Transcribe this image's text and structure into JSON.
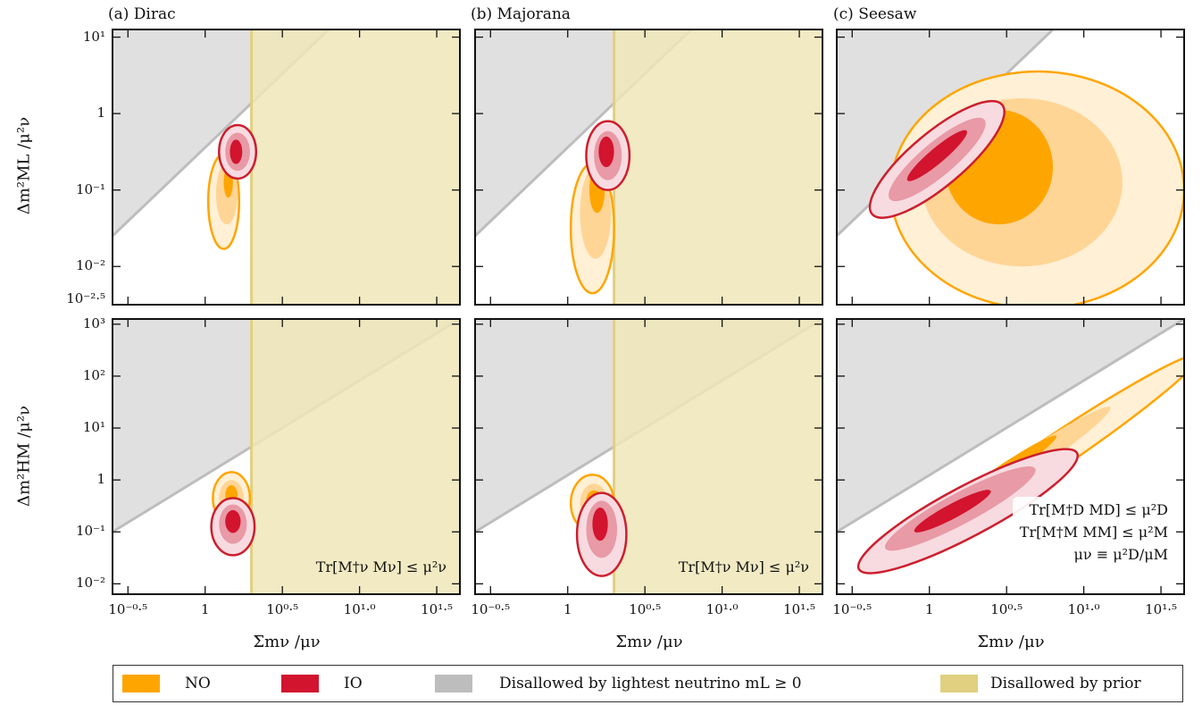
{
  "colors": {
    "no_core": "#ffa500",
    "no_mid": "#ffd596",
    "no_outer": "#fff0d6",
    "no_line": "#ffa500",
    "io_core": "#d2142e",
    "io_mid": "#e89aa6",
    "io_outer": "#f7dbe0",
    "io_line": "#cc1f2e",
    "lightest_disallowed": "#e0e0e0",
    "lightest_line": "#bdbdbd",
    "prior_disallowed": "#efe6b8",
    "prior_line": "#e0d080"
  },
  "panels": {
    "a": {
      "title": "(a)  Dirac"
    },
    "b": {
      "title": "(b)  Majorana"
    },
    "c": {
      "title": "(c)  Seesaw"
    }
  },
  "axes": {
    "top_ylabel": "Δm²ML /μ²ν",
    "bottom_ylabel": "Δm²HM /μ²ν",
    "xlabel": "Σmν /μν",
    "top_yticks": [
      {
        "value": 1,
        "label": "10¹"
      },
      {
        "value": 0,
        "label": "1"
      },
      {
        "value": -1,
        "label": "10⁻¹"
      },
      {
        "value": -2,
        "label": "10⁻²"
      },
      {
        "value": -2.5,
        "label": "10⁻²·⁵"
      }
    ],
    "bottom_yticks": [
      {
        "value": 3,
        "label": "10³"
      },
      {
        "value": 2,
        "label": "10²"
      },
      {
        "value": 1,
        "label": "10¹"
      },
      {
        "value": 0,
        "label": "1"
      },
      {
        "value": -1,
        "label": "10⁻¹"
      },
      {
        "value": -2,
        "label": "10⁻²"
      }
    ],
    "xticks": [
      {
        "value": -0.5,
        "label": "10⁻⁰·⁵"
      },
      {
        "value": 0,
        "label": "1"
      },
      {
        "value": 0.5,
        "label": "10⁰·⁵"
      },
      {
        "value": 1.0,
        "label": "10¹·⁰"
      },
      {
        "value": 1.5,
        "label": "10¹·⁵"
      }
    ]
  },
  "annotations": {
    "dirac": "Tr[M†ν Mν] ≤ μ²ν",
    "majorana": "Tr[M†ν Mν] ≤ μ²ν",
    "seesaw_line1": "Tr[M†D MD] ≤ μ²D",
    "seesaw_line2": "Tr[M†M MM] ≤ μ²M",
    "seesaw_line3": "μν ≡ μ²D/μM"
  },
  "legend": {
    "no": "NO",
    "io": "IO",
    "lightest": "Disallowed by lightest neutrino mL ≥ 0",
    "prior": "Disallowed by prior"
  },
  "chart_data": [
    {
      "type": "area",
      "panel": "a",
      "row": "top",
      "title": "(a)  Dirac",
      "xlabel": "Σmν /μν",
      "ylabel": "Δm²ML /μ²ν",
      "x_scale": "log10",
      "y_scale": "log10",
      "xlim_log10": [
        -0.6,
        1.65
      ],
      "ylim_log10": [
        -2.5,
        1.1
      ],
      "disallowed_lightest_boundary_log10": [
        [
          -0.6,
          -1.6
        ],
        [
          0.8,
          1.1
        ]
      ],
      "disallowed_prior_x_log10": 0.3,
      "series": [
        {
          "name": "NO",
          "levels": [
            {
              "cx": 0.12,
              "cy": -1.15,
              "rx": 0.1,
              "ry": 0.62
            },
            {
              "cx": 0.14,
              "cy": -1.05,
              "rx": 0.07,
              "ry": 0.4
            },
            {
              "cx": 0.15,
              "cy": -0.9,
              "rx": 0.03,
              "ry": 0.2
            }
          ]
        },
        {
          "name": "IO",
          "levels": [
            {
              "cx": 0.21,
              "cy": -0.5,
              "rx": 0.12,
              "ry": 0.35
            },
            {
              "cx": 0.21,
              "cy": -0.5,
              "rx": 0.08,
              "ry": 0.25
            },
            {
              "cx": 0.2,
              "cy": -0.5,
              "rx": 0.04,
              "ry": 0.16
            }
          ]
        }
      ]
    },
    {
      "type": "area",
      "panel": "b",
      "row": "top",
      "title": "(b)  Majorana",
      "xlabel": "Σmν /μν",
      "ylabel": "Δm²ML /μ²ν",
      "x_scale": "log10",
      "y_scale": "log10",
      "xlim_log10": [
        -0.6,
        1.65
      ],
      "ylim_log10": [
        -2.5,
        1.1
      ],
      "disallowed_lightest_boundary_log10": [
        [
          -0.6,
          -1.6
        ],
        [
          0.8,
          1.1
        ]
      ],
      "disallowed_prior_x_log10": 0.3,
      "series": [
        {
          "name": "NO",
          "levels": [
            {
              "cx": 0.16,
              "cy": -1.5,
              "rx": 0.14,
              "ry": 0.85
            },
            {
              "cx": 0.18,
              "cy": -1.3,
              "rx": 0.1,
              "ry": 0.6
            },
            {
              "cx": 0.19,
              "cy": -1.0,
              "rx": 0.05,
              "ry": 0.3
            }
          ]
        },
        {
          "name": "IO",
          "levels": [
            {
              "cx": 0.26,
              "cy": -0.55,
              "rx": 0.14,
              "ry": 0.45
            },
            {
              "cx": 0.26,
              "cy": -0.55,
              "rx": 0.09,
              "ry": 0.32
            },
            {
              "cx": 0.25,
              "cy": -0.5,
              "rx": 0.05,
              "ry": 0.2
            }
          ]
        }
      ]
    },
    {
      "type": "area",
      "panel": "c",
      "row": "top",
      "title": "(c)  Seesaw",
      "xlabel": "Σmν /μν",
      "ylabel": "Δm²ML /μ²ν",
      "x_scale": "log10",
      "y_scale": "log10",
      "xlim_log10": [
        -0.6,
        1.65
      ],
      "ylim_log10": [
        -2.5,
        1.1
      ],
      "disallowed_lightest_boundary_log10": [
        [
          -0.6,
          -1.6
        ],
        [
          0.8,
          1.1
        ]
      ],
      "series": [
        {
          "name": "NO",
          "levels": [
            {
              "cx": 0.7,
              "cy": -1.0,
              "rx": 0.95,
              "ry": 1.55
            },
            {
              "cx": 0.6,
              "cy": -0.9,
              "rx": 0.65,
              "ry": 1.1
            },
            {
              "cx": 0.45,
              "cy": -0.7,
              "rx": 0.35,
              "ry": 0.75
            }
          ]
        },
        {
          "name": "IO",
          "levels": [
            {
              "cx": 0.05,
              "cy": -0.6,
              "rx": 0.55,
              "ry": 0.35,
              "rotate_deg": -40
            },
            {
              "cx": 0.05,
              "cy": -0.6,
              "rx": 0.4,
              "ry": 0.22,
              "rotate_deg": -40
            },
            {
              "cx": 0.05,
              "cy": -0.55,
              "rx": 0.25,
              "ry": 0.1,
              "rotate_deg": -40
            }
          ]
        }
      ]
    },
    {
      "type": "area",
      "panel": "a",
      "row": "bottom",
      "xlabel": "Σmν /μν",
      "ylabel": "Δm²HM /μ²ν",
      "x_scale": "log10",
      "y_scale": "log10",
      "xlim_log10": [
        -0.6,
        1.65
      ],
      "ylim_log10": [
        -2.2,
        3.1
      ],
      "disallowed_lightest_boundary_log10": [
        [
          -0.6,
          -1.0
        ],
        [
          1.65,
          3.1
        ]
      ],
      "disallowed_prior_x_log10": 0.3,
      "series": [
        {
          "name": "NO",
          "levels": [
            {
              "cx": 0.17,
              "cy": -0.35,
              "rx": 0.12,
              "ry": 0.5
            },
            {
              "cx": 0.17,
              "cy": -0.35,
              "rx": 0.08,
              "ry": 0.35
            },
            {
              "cx": 0.17,
              "cy": -0.3,
              "rx": 0.04,
              "ry": 0.2
            }
          ]
        },
        {
          "name": "IO",
          "levels": [
            {
              "cx": 0.18,
              "cy": -0.9,
              "rx": 0.14,
              "ry": 0.55
            },
            {
              "cx": 0.18,
              "cy": -0.85,
              "rx": 0.09,
              "ry": 0.38
            },
            {
              "cx": 0.18,
              "cy": -0.8,
              "rx": 0.05,
              "ry": 0.22
            }
          ]
        }
      ]
    },
    {
      "type": "area",
      "panel": "b",
      "row": "bottom",
      "xlabel": "Σmν /μν",
      "ylabel": "Δm²HM /μ²ν",
      "x_scale": "log10",
      "y_scale": "log10",
      "xlim_log10": [
        -0.6,
        1.65
      ],
      "ylim_log10": [
        -2.2,
        3.1
      ],
      "disallowed_lightest_boundary_log10": [
        [
          -0.6,
          -1.0
        ],
        [
          1.65,
          3.1
        ]
      ],
      "disallowed_prior_x_log10": 0.3,
      "series": [
        {
          "name": "NO",
          "levels": [
            {
              "cx": 0.16,
              "cy": -0.45,
              "rx": 0.14,
              "ry": 0.55
            },
            {
              "cx": 0.17,
              "cy": -0.45,
              "rx": 0.09,
              "ry": 0.38
            },
            {
              "cx": 0.17,
              "cy": -0.4,
              "rx": 0.05,
              "ry": 0.2
            }
          ]
        },
        {
          "name": "IO",
          "levels": [
            {
              "cx": 0.22,
              "cy": -1.05,
              "rx": 0.16,
              "ry": 0.8
            },
            {
              "cx": 0.22,
              "cy": -0.95,
              "rx": 0.1,
              "ry": 0.55
            },
            {
              "cx": 0.21,
              "cy": -0.85,
              "rx": 0.05,
              "ry": 0.32
            }
          ]
        }
      ]
    },
    {
      "type": "area",
      "panel": "c",
      "row": "bottom",
      "xlabel": "Σmν /μν",
      "ylabel": "Δm²HM /μ²ν",
      "x_scale": "log10",
      "y_scale": "log10",
      "xlim_log10": [
        -0.6,
        1.65
      ],
      "ylim_log10": [
        -2.2,
        3.1
      ],
      "disallowed_lightest_boundary_log10": [
        [
          -0.6,
          -1.0
        ],
        [
          1.65,
          3.1
        ]
      ],
      "series": [
        {
          "name": "NO",
          "levels": [
            {
              "cx": 0.75,
              "cy": 0.4,
              "rx": 1.2,
              "ry": 0.32,
              "rotate_deg": -34
            },
            {
              "cx": 0.55,
              "cy": 0.15,
              "rx": 0.75,
              "ry": 0.22,
              "rotate_deg": -34
            },
            {
              "cx": 0.45,
              "cy": 0.1,
              "rx": 0.45,
              "ry": 0.14,
              "rotate_deg": -34
            }
          ]
        },
        {
          "name": "IO",
          "levels": [
            {
              "cx": 0.25,
              "cy": -0.6,
              "rx": 0.8,
              "ry": 0.48,
              "rotate_deg": -28
            },
            {
              "cx": 0.2,
              "cy": -0.55,
              "rx": 0.55,
              "ry": 0.3,
              "rotate_deg": -28
            },
            {
              "cx": 0.15,
              "cy": -0.6,
              "rx": 0.28,
              "ry": 0.14,
              "rotate_deg": -28
            }
          ]
        }
      ]
    }
  ]
}
